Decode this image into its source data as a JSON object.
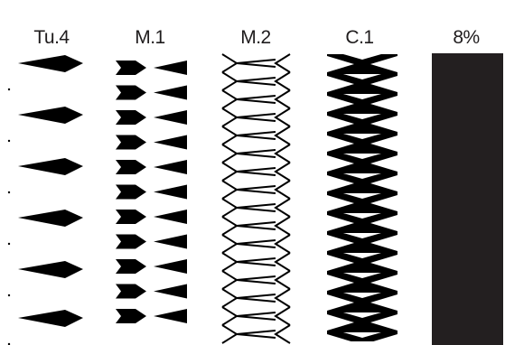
{
  "columns": [
    {
      "label": "Tu.4",
      "pattern": "teardrop-arrows"
    },
    {
      "label": "M.1",
      "pattern": "paired-arrows"
    },
    {
      "label": "M.2",
      "pattern": "zigzag-outline"
    },
    {
      "label": "C.1",
      "pattern": "zigzag-filled"
    },
    {
      "label": "8%",
      "pattern": "solid-fill"
    }
  ],
  "colors": {
    "ink": "#000000",
    "fill": "#231f20",
    "background": "#ffffff"
  }
}
